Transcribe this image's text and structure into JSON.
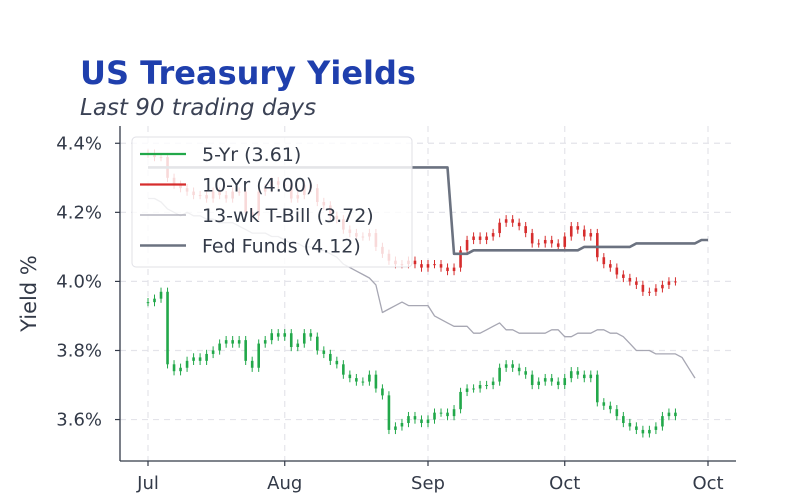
{
  "title": "US Treasury Yields",
  "subtitle": "Last 90 trading days",
  "chart_data": {
    "type": "candlestick+line",
    "ylabel": "Yield %",
    "ylim": [
      3.48,
      4.45
    ],
    "y_ticks": [
      3.6,
      3.8,
      4.0,
      4.2,
      4.4
    ],
    "y_tick_labels": [
      "3.6%",
      "3.8%",
      "4.0%",
      "4.2%",
      "4.4%"
    ],
    "x_ticks": [
      0,
      21,
      43,
      64,
      86
    ],
    "x_tick_labels": [
      "Jul",
      "Aug",
      "Sep",
      "Oct",
      "Oct"
    ],
    "xlim": [
      -4,
      91
    ],
    "grid": true,
    "legend_position": "top-left",
    "colors": {
      "5yr": "#22a84a",
      "10yr": "#d62d2d",
      "tbill": "#a7a7b3",
      "fed": "#6b7280"
    },
    "legend": [
      "5-Yr (3.61)",
      "10-Yr (4.00)",
      "13-wk T-Bill (3.72)",
      "Fed Funds (4.12)"
    ],
    "series_5yr_close": [
      3.94,
      3.95,
      3.97,
      3.76,
      3.74,
      3.75,
      3.77,
      3.78,
      3.77,
      3.79,
      3.8,
      3.82,
      3.83,
      3.82,
      3.83,
      3.77,
      3.75,
      3.82,
      3.83,
      3.85,
      3.84,
      3.85,
      3.81,
      3.82,
      3.85,
      3.84,
      3.8,
      3.79,
      3.77,
      3.76,
      3.73,
      3.72,
      3.71,
      3.71,
      3.73,
      3.69,
      3.67,
      3.57,
      3.58,
      3.59,
      3.61,
      3.6,
      3.59,
      3.6,
      3.62,
      3.62,
      3.61,
      3.63,
      3.68,
      3.69,
      3.69,
      3.7,
      3.7,
      3.71,
      3.75,
      3.76,
      3.75,
      3.74,
      3.73,
      3.7,
      3.71,
      3.72,
      3.71,
      3.7,
      3.72,
      3.74,
      3.73,
      3.72,
      3.73,
      3.65,
      3.64,
      3.63,
      3.61,
      3.59,
      3.58,
      3.57,
      3.56,
      3.57,
      3.58,
      3.61,
      3.62,
      3.61
    ],
    "series_10yr_close": [
      4.37,
      4.36,
      4.36,
      4.3,
      4.28,
      4.27,
      4.26,
      4.25,
      4.25,
      4.24,
      4.26,
      4.25,
      4.24,
      4.26,
      4.26,
      4.2,
      4.19,
      4.26,
      4.27,
      4.29,
      4.28,
      4.28,
      4.24,
      4.25,
      4.28,
      4.27,
      4.23,
      4.22,
      4.19,
      4.18,
      4.15,
      4.14,
      4.13,
      4.13,
      4.14,
      4.1,
      4.08,
      4.06,
      4.05,
      4.05,
      4.06,
      4.05,
      4.04,
      4.05,
      4.05,
      4.04,
      4.03,
      4.04,
      4.09,
      4.12,
      4.13,
      4.12,
      4.13,
      4.14,
      4.17,
      4.18,
      4.17,
      4.16,
      4.14,
      4.11,
      4.11,
      4.12,
      4.11,
      4.1,
      4.13,
      4.16,
      4.15,
      4.13,
      4.14,
      4.07,
      4.05,
      4.04,
      4.02,
      4.01,
      4.0,
      3.99,
      3.97,
      3.97,
      3.98,
      3.99,
      4.0,
      4.0
    ],
    "series_tbill": [
      4.24,
      4.24,
      4.23,
      4.21,
      4.2,
      4.19,
      4.2,
      4.19,
      4.19,
      4.18,
      4.18,
      4.17,
      4.17,
      4.17,
      4.16,
      4.15,
      4.14,
      4.14,
      4.14,
      4.13,
      4.13,
      4.12,
      4.11,
      4.11,
      4.1,
      4.1,
      4.09,
      4.09,
      4.08,
      4.07,
      4.05,
      4.04,
      4.03,
      4.02,
      4.01,
      3.99,
      3.91,
      3.92,
      3.93,
      3.94,
      3.93,
      3.93,
      3.93,
      3.93,
      3.9,
      3.89,
      3.88,
      3.87,
      3.87,
      3.87,
      3.85,
      3.85,
      3.86,
      3.87,
      3.88,
      3.86,
      3.86,
      3.85,
      3.85,
      3.85,
      3.85,
      3.85,
      3.86,
      3.86,
      3.84,
      3.84,
      3.85,
      3.85,
      3.85,
      3.86,
      3.86,
      3.85,
      3.85,
      3.84,
      3.82,
      3.8,
      3.8,
      3.8,
      3.79,
      3.79,
      3.79,
      3.79,
      3.78,
      3.75,
      3.72
    ],
    "series_fed": [
      4.33,
      4.33,
      4.33,
      4.33,
      4.33,
      4.33,
      4.33,
      4.33,
      4.33,
      4.33,
      4.33,
      4.33,
      4.33,
      4.33,
      4.33,
      4.33,
      4.33,
      4.33,
      4.33,
      4.33,
      4.33,
      4.33,
      4.33,
      4.33,
      4.33,
      4.33,
      4.33,
      4.33,
      4.33,
      4.33,
      4.33,
      4.33,
      4.33,
      4.33,
      4.33,
      4.33,
      4.33,
      4.33,
      4.33,
      4.33,
      4.33,
      4.33,
      4.33,
      4.33,
      4.33,
      4.33,
      4.33,
      4.08,
      4.08,
      4.08,
      4.09,
      4.09,
      4.09,
      4.09,
      4.09,
      4.09,
      4.09,
      4.09,
      4.09,
      4.09,
      4.09,
      4.09,
      4.09,
      4.09,
      4.09,
      4.09,
      4.09,
      4.1,
      4.1,
      4.1,
      4.1,
      4.1,
      4.1,
      4.1,
      4.1,
      4.11,
      4.11,
      4.11,
      4.11,
      4.11,
      4.11,
      4.11,
      4.11,
      4.11,
      4.11,
      4.12,
      4.12
    ]
  }
}
